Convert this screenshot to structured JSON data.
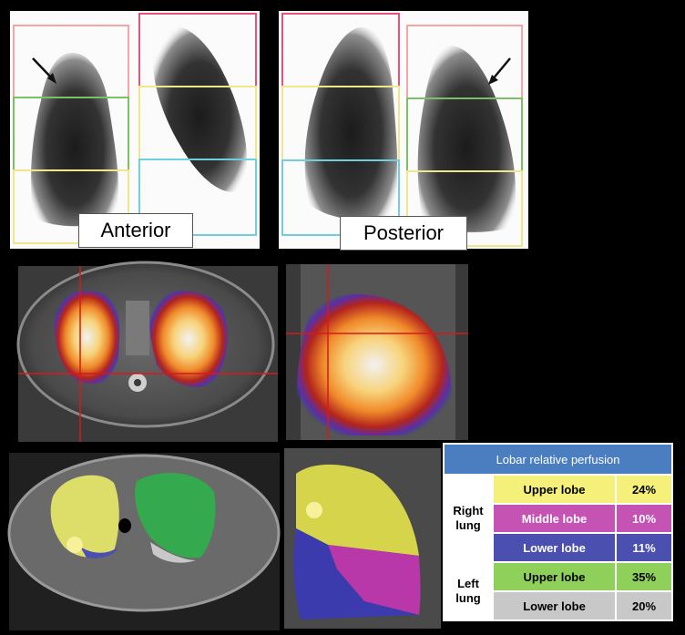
{
  "scintigraphy": {
    "anterior_label": "Anterior",
    "posterior_label": "Posterior"
  },
  "table": {
    "title": "Lobar relative perfusion",
    "groups": [
      {
        "name": "Right lung",
        "rows": [
          {
            "lobe": "Upper lobe",
            "value": "24%",
            "color": "#f4f07a"
          },
          {
            "lobe": "Middle lobe",
            "value": "10%",
            "color": "#c453b4"
          },
          {
            "lobe": "Lower lobe",
            "value": "11%",
            "color": "#4a4fb0"
          }
        ]
      },
      {
        "name": "Left lung",
        "rows": [
          {
            "lobe": "Upper lobe",
            "value": "35%",
            "color": "#8fd05a"
          },
          {
            "lobe": "Lower lobe",
            "value": "20%",
            "color": "#c8c8c8"
          }
        ]
      }
    ]
  },
  "colors": {
    "roi_pink": "#e8527a",
    "roi_green": "#7cc063",
    "roi_yellow": "#f0e68c",
    "roi_cyan": "#6fcfdc",
    "crosshair": "#d61a1a",
    "header_blue": "#4a7ec0"
  }
}
